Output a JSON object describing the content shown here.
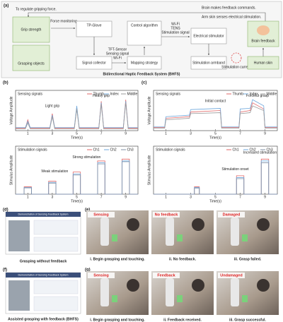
{
  "panel_a": {
    "label": "(a)",
    "top_note": "To regulate gripping force.",
    "brain_note": "Brain makes feedback commands.",
    "skin_note": "Arm skin senses electrical stimulation.",
    "grip_strength": "Grip strength",
    "grasping_objects": "Grasping objects",
    "force_monitoring": "Force monitoring",
    "tp_glove": "TP-Glove",
    "signal_collector": "Signal collector",
    "tft_sensor": "TFT-Sensor",
    "sensing_signal": "Sensing signal",
    "wifi_1": "Wi-Fi",
    "control_algorithm": "Control algorithm",
    "mapping_strategy": "Mapping strategy",
    "wifi_2": "Wi-Fi",
    "tens": "TENS",
    "stimulation_signal": "Stimulation signal",
    "electrical_stimulator": "Electrical stimulator",
    "stimulation_armband": "Stimulation armband",
    "stimulation_current": "Stimulation current",
    "brain_feedback": "Brain feedback",
    "human_skin": "Human skin",
    "title": "Bidirectional Haptic Feedback System (BHFS)"
  },
  "panel_labels": [
    "(b)",
    "(c)",
    "(d)",
    "(e)",
    "(f)",
    "(g)"
  ],
  "chart_data": [
    {
      "type": "line",
      "title": "Sensing signals",
      "x_label": "Time(s)",
      "y_label": "Voltage Amplitude",
      "xlim": [
        0,
        10
      ],
      "ylim": [
        0,
        1.3
      ],
      "xticks": [
        1,
        3,
        5,
        7,
        9
      ],
      "legend": "top-right",
      "annotations": [
        "Light grip",
        "Heavy grip"
      ],
      "x": [
        0,
        0.8,
        1,
        1.2,
        2.8,
        3,
        3.2,
        4.8,
        5,
        5.2,
        6.8,
        7,
        7.2,
        8.8,
        9,
        9.2,
        10
      ],
      "series": [
        {
          "name": "Thumb",
          "color": "#e06666",
          "values": [
            0.08,
            0.08,
            0.35,
            0.08,
            0.08,
            0.55,
            0.08,
            0.08,
            0.75,
            0.08,
            0.08,
            0.95,
            0.08,
            0.08,
            1.0,
            0.08,
            0.08
          ]
        },
        {
          "name": "Index",
          "color": "#6fa8dc",
          "values": [
            0.1,
            0.1,
            0.3,
            0.1,
            0.1,
            0.5,
            0.1,
            0.1,
            0.8,
            0.1,
            0.1,
            0.9,
            0.1,
            0.1,
            0.95,
            0.1,
            0.1
          ]
        },
        {
          "name": "Middle",
          "color": "#999999",
          "values": [
            0.06,
            0.06,
            0.25,
            0.06,
            0.06,
            0.45,
            0.06,
            0.06,
            0.7,
            0.06,
            0.06,
            0.85,
            0.06,
            0.06,
            0.9,
            0.06,
            0.06
          ]
        }
      ]
    },
    {
      "type": "line",
      "title": "Stimulation signals",
      "x_label": "Time(s)",
      "y_label": "Stimulus Amplitude",
      "xlim": [
        0,
        10
      ],
      "ylim": [
        0,
        1.3
      ],
      "xticks": [
        1,
        3,
        5,
        7,
        9
      ],
      "legend": "top-right",
      "annotations": [
        "Weak stimulation",
        "Strong stimulation"
      ],
      "x": [
        0,
        0.7,
        0.7,
        1.3,
        1.3,
        2.7,
        2.7,
        3.3,
        3.3,
        4.7,
        4.7,
        5.3,
        5.3,
        6.7,
        6.7,
        7.3,
        7.3,
        8.7,
        8.7,
        9.3,
        9.3,
        10
      ],
      "series": [
        {
          "name": "Ch1",
          "color": "#e06666",
          "values": [
            0,
            0,
            0.2,
            0.2,
            0,
            0,
            0.35,
            0.35,
            0,
            0,
            0.6,
            0.6,
            0,
            0,
            0.9,
            0.9,
            0,
            0,
            0.95,
            0.95,
            0,
            0
          ]
        },
        {
          "name": "Ch2",
          "color": "#6fa8dc",
          "values": [
            0,
            0,
            0.18,
            0.18,
            0,
            0,
            0.32,
            0.32,
            0,
            0,
            0.55,
            0.55,
            0,
            0,
            0.85,
            0.85,
            0,
            0,
            0.9,
            0.9,
            0,
            0
          ]
        },
        {
          "name": "Ch3",
          "color": "#7f8fa6",
          "values": [
            0,
            0,
            0.17,
            0.17,
            0,
            0,
            0.3,
            0.3,
            0,
            0,
            0.52,
            0.52,
            0,
            0,
            0.82,
            0.82,
            0,
            0,
            0.88,
            0.88,
            0,
            0
          ]
        }
      ]
    },
    {
      "type": "line",
      "title": "Sensing signals",
      "x_label": "Time(s)",
      "y_label": "Voltage Amplitude",
      "xlim": [
        0,
        10
      ],
      "ylim": [
        0,
        1.3
      ],
      "xticks": [
        1,
        3,
        5,
        7,
        9
      ],
      "legend": "top-right",
      "annotations": [
        "Initial contact",
        "Forceful grasp"
      ],
      "x": [
        0,
        0.9,
        1,
        2.9,
        3,
        5.4,
        5.5,
        6.9,
        7,
        7.8,
        8,
        8.9,
        9,
        10
      ],
      "series": [
        {
          "name": "Thumb",
          "color": "#e06666",
          "values": [
            0.1,
            0.1,
            0.4,
            0.45,
            0.6,
            0.65,
            0.1,
            0.1,
            0.6,
            0.65,
            0.9,
            0.7,
            0.1,
            0.1
          ]
        },
        {
          "name": "Index",
          "color": "#6fa8dc",
          "values": [
            0.12,
            0.12,
            0.45,
            0.5,
            0.68,
            0.72,
            0.12,
            0.12,
            0.7,
            0.72,
            1.0,
            0.8,
            0.12,
            0.12
          ]
        },
        {
          "name": "Middle",
          "color": "#999999",
          "values": [
            0.08,
            0.08,
            0.35,
            0.4,
            0.55,
            0.58,
            0.08,
            0.08,
            0.55,
            0.58,
            0.8,
            0.65,
            0.08,
            0.08
          ]
        }
      ]
    },
    {
      "type": "line",
      "title": "Stimulation signals",
      "x_label": "Time(s)",
      "y_label": "Stimulus Amplitude",
      "xlim": [
        0,
        10
      ],
      "ylim": [
        0,
        1.3
      ],
      "xticks": [
        1,
        3,
        5,
        7,
        9
      ],
      "legend": "top-right",
      "annotations": [
        "Stimulation onset",
        "Increased stimulation"
      ],
      "x": [
        0,
        3.3,
        3.3,
        3.7,
        3.7,
        6.7,
        6.7,
        7.3,
        7.3,
        8.7,
        8.7,
        9.3,
        9.3,
        10
      ],
      "series": [
        {
          "name": "Ch1",
          "color": "#e06666",
          "values": [
            0,
            0,
            0.2,
            0.2,
            0,
            0,
            0.5,
            0.5,
            0,
            0,
            0.95,
            0.95,
            0,
            0
          ]
        },
        {
          "name": "Ch2",
          "color": "#6fa8dc",
          "values": [
            0,
            0,
            0.18,
            0.18,
            0,
            0,
            0.45,
            0.45,
            0,
            0,
            0.9,
            0.9,
            0,
            0
          ]
        },
        {
          "name": "Ch3",
          "color": "#7f8fa6",
          "values": [
            0,
            0,
            0.16,
            0.16,
            0,
            0,
            0.42,
            0.42,
            0,
            0,
            0.85,
            0.85,
            0,
            0
          ]
        }
      ]
    }
  ],
  "panel_d": {
    "screen_title": "Demonstration of Sensing Feedback System",
    "caption": "Grasping without feedback"
  },
  "panel_e": {
    "tags": [
      "Sensing",
      "No feedback",
      "Damaged"
    ],
    "captions": [
      "i. Begin grasping and touching.",
      "ii. No feedback.",
      "iii. Grasp failed."
    ]
  },
  "panel_f": {
    "screen_title": "Demonstration of Sensing Feedback System",
    "caption": "Assisted grasping with feedback (BHFS)"
  },
  "panel_g": {
    "tags": [
      "Sensing",
      "Feedback",
      "Undamaged"
    ],
    "captions": [
      "i. Begin grasping and touching.",
      "ii. Feedback received.",
      "iii. Grasp successful."
    ]
  }
}
